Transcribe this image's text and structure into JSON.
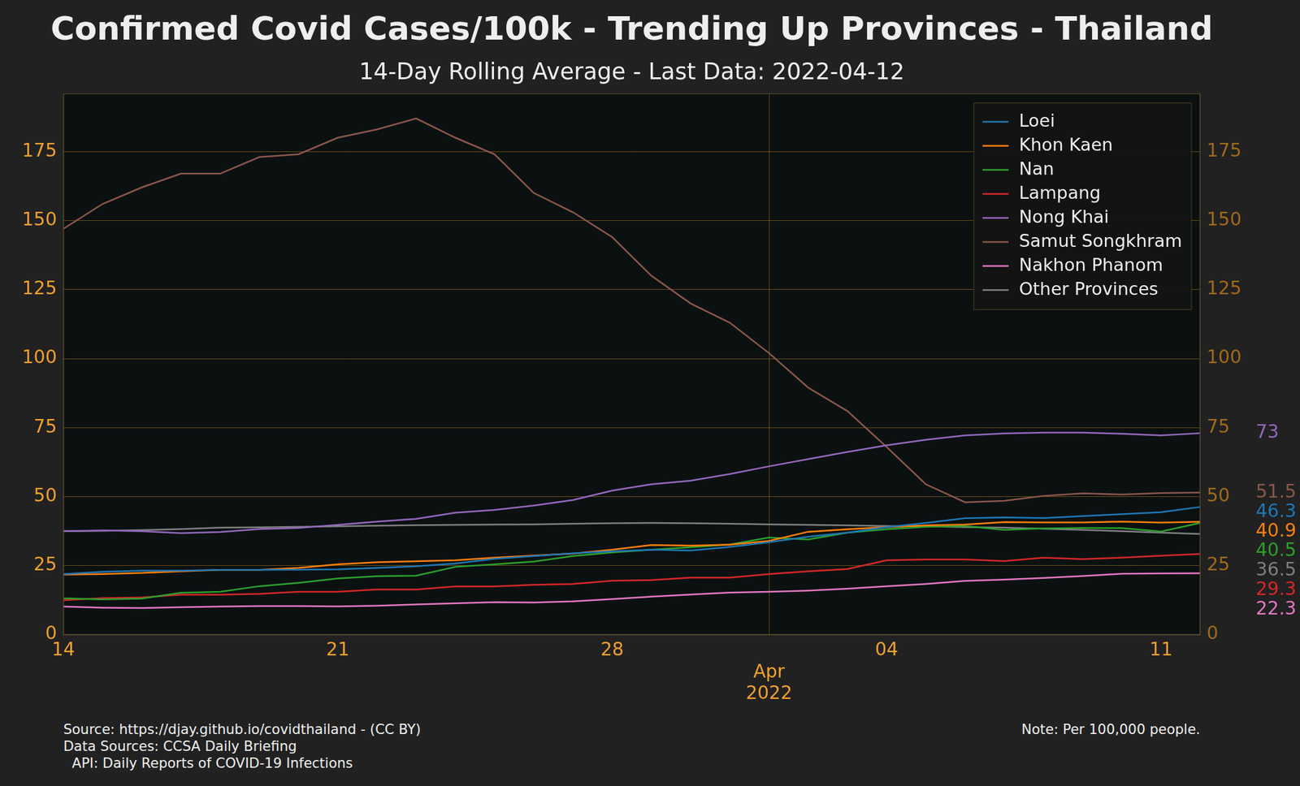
{
  "chart_data": {
    "type": "line",
    "title": "Confirmed Covid Cases/100k - Trending Up Provinces - Thailand",
    "subtitle": "14-Day Rolling Average - Last Data: 2022-04-12",
    "categories": [
      "14",
      null,
      null,
      null,
      null,
      null,
      null,
      "21",
      null,
      null,
      null,
      null,
      null,
      null,
      "28",
      null,
      null,
      null,
      "Apr 2022",
      null,
      null,
      "04",
      null,
      null,
      null,
      null,
      null,
      null,
      "11",
      null
    ],
    "series": [
      {
        "name": "Loei",
        "color": "#1f77b4",
        "values": [
          22,
          22.8,
          23.2,
          23.2,
          23.5,
          23.5,
          23.6,
          23.7,
          24.2,
          24.8,
          25.8,
          27.5,
          28.5,
          29.5,
          30.2,
          30.8,
          30.5,
          31.8,
          33.5,
          35.5,
          37,
          39,
          40.5,
          42.2,
          42.5,
          42.3,
          43,
          43.7,
          44.4,
          46.3
        ]
      },
      {
        "name": "Khon Kaen",
        "color": "#ff7f0e",
        "values": [
          21.8,
          22,
          22.4,
          23,
          23.5,
          23.5,
          24.2,
          25.5,
          26.3,
          26.6,
          27,
          27.9,
          28.7,
          29.4,
          30.8,
          32.5,
          32.3,
          32.6,
          34,
          37.3,
          38.2,
          39,
          39.6,
          39.9,
          40.8,
          40.7,
          40.7,
          41,
          40.6,
          40.9
        ]
      },
      {
        "name": "Nan",
        "color": "#2ca02c",
        "values": [
          13.2,
          12.8,
          13.1,
          15.2,
          15.6,
          17.6,
          18.8,
          20.4,
          21.2,
          21.4,
          24.6,
          25.5,
          26.5,
          28.5,
          29.8,
          30.8,
          31.7,
          32.7,
          35.2,
          34.5,
          37,
          38.2,
          39.1,
          39.4,
          38,
          38.5,
          38.7,
          38.6,
          37.4,
          40.5
        ]
      },
      {
        "name": "Lampang",
        "color": "#d62728",
        "values": [
          12.5,
          13.3,
          13.5,
          14.5,
          14.5,
          14.8,
          15.6,
          15.6,
          16.4,
          16.4,
          17.5,
          17.5,
          18.1,
          18.4,
          19.6,
          19.8,
          20.7,
          20.7,
          22,
          23,
          23.8,
          27,
          27.3,
          27.3,
          26.7,
          27.9,
          27.4,
          27.9,
          28.6,
          29.3
        ]
      },
      {
        "name": "Nong Khai",
        "color": "#9467bd",
        "values": [
          37.5,
          37.8,
          37.5,
          36.8,
          37.2,
          38.3,
          38.7,
          39.8,
          41,
          42,
          44.2,
          45.2,
          46.8,
          48.8,
          52.2,
          54.5,
          55.8,
          58.2,
          61,
          63.6,
          66.2,
          68.6,
          70.6,
          72.2,
          72.9,
          73.2,
          73.2,
          72.8,
          72.2,
          73
        ]
      },
      {
        "name": "Samut Songkhram",
        "color": "#8c564b",
        "values": [
          147,
          156,
          162,
          167,
          167,
          173,
          174,
          180,
          183,
          187,
          180,
          174,
          160,
          153,
          144,
          130,
          120,
          113,
          102,
          89.5,
          81,
          68,
          54.5,
          48,
          48.5,
          50.3,
          51.2,
          50.8,
          51.3,
          51.5
        ]
      },
      {
        "name": "Nakhon Phanom",
        "color": "#e377c2",
        "values": [
          10.2,
          9.8,
          9.7,
          10,
          10.2,
          10.4,
          10.4,
          10.3,
          10.5,
          11,
          11.4,
          11.8,
          11.7,
          12.1,
          12.9,
          13.8,
          14.6,
          15.3,
          15.6,
          16,
          16.7,
          17.6,
          18.4,
          19.5,
          20,
          20.6,
          21.3,
          22.1,
          22.2,
          22.3
        ]
      },
      {
        "name": "Other Provinces",
        "color": "#7f7f7f",
        "values": [
          37.5,
          37.6,
          37.9,
          38.3,
          38.8,
          38.9,
          39.1,
          39.3,
          39.5,
          39.7,
          39.8,
          39.9,
          40,
          40.2,
          40.4,
          40.5,
          40.4,
          40.2,
          40,
          39.8,
          39.6,
          39.4,
          39.3,
          39,
          38.8,
          38.4,
          38,
          37.5,
          37,
          36.5
        ]
      }
    ],
    "ylim": [
      0,
      196
    ],
    "yticks": [
      0,
      25,
      50,
      75,
      100,
      125,
      150,
      175
    ],
    "y2lim": [
      0,
      196
    ],
    "y2ticks": [
      0,
      25,
      50,
      75,
      100,
      125,
      150,
      175
    ],
    "grid": true,
    "legend": "upper right",
    "data_labels": "last",
    "source": [
      "Source: https://djay.github.io/covidthailand - (CC BY)",
      "Data Sources: CCSA Daily Briefing",
      "  API: Daily Reports of COVID-19 Infections"
    ],
    "note": "Note: Per 100,000 people."
  }
}
